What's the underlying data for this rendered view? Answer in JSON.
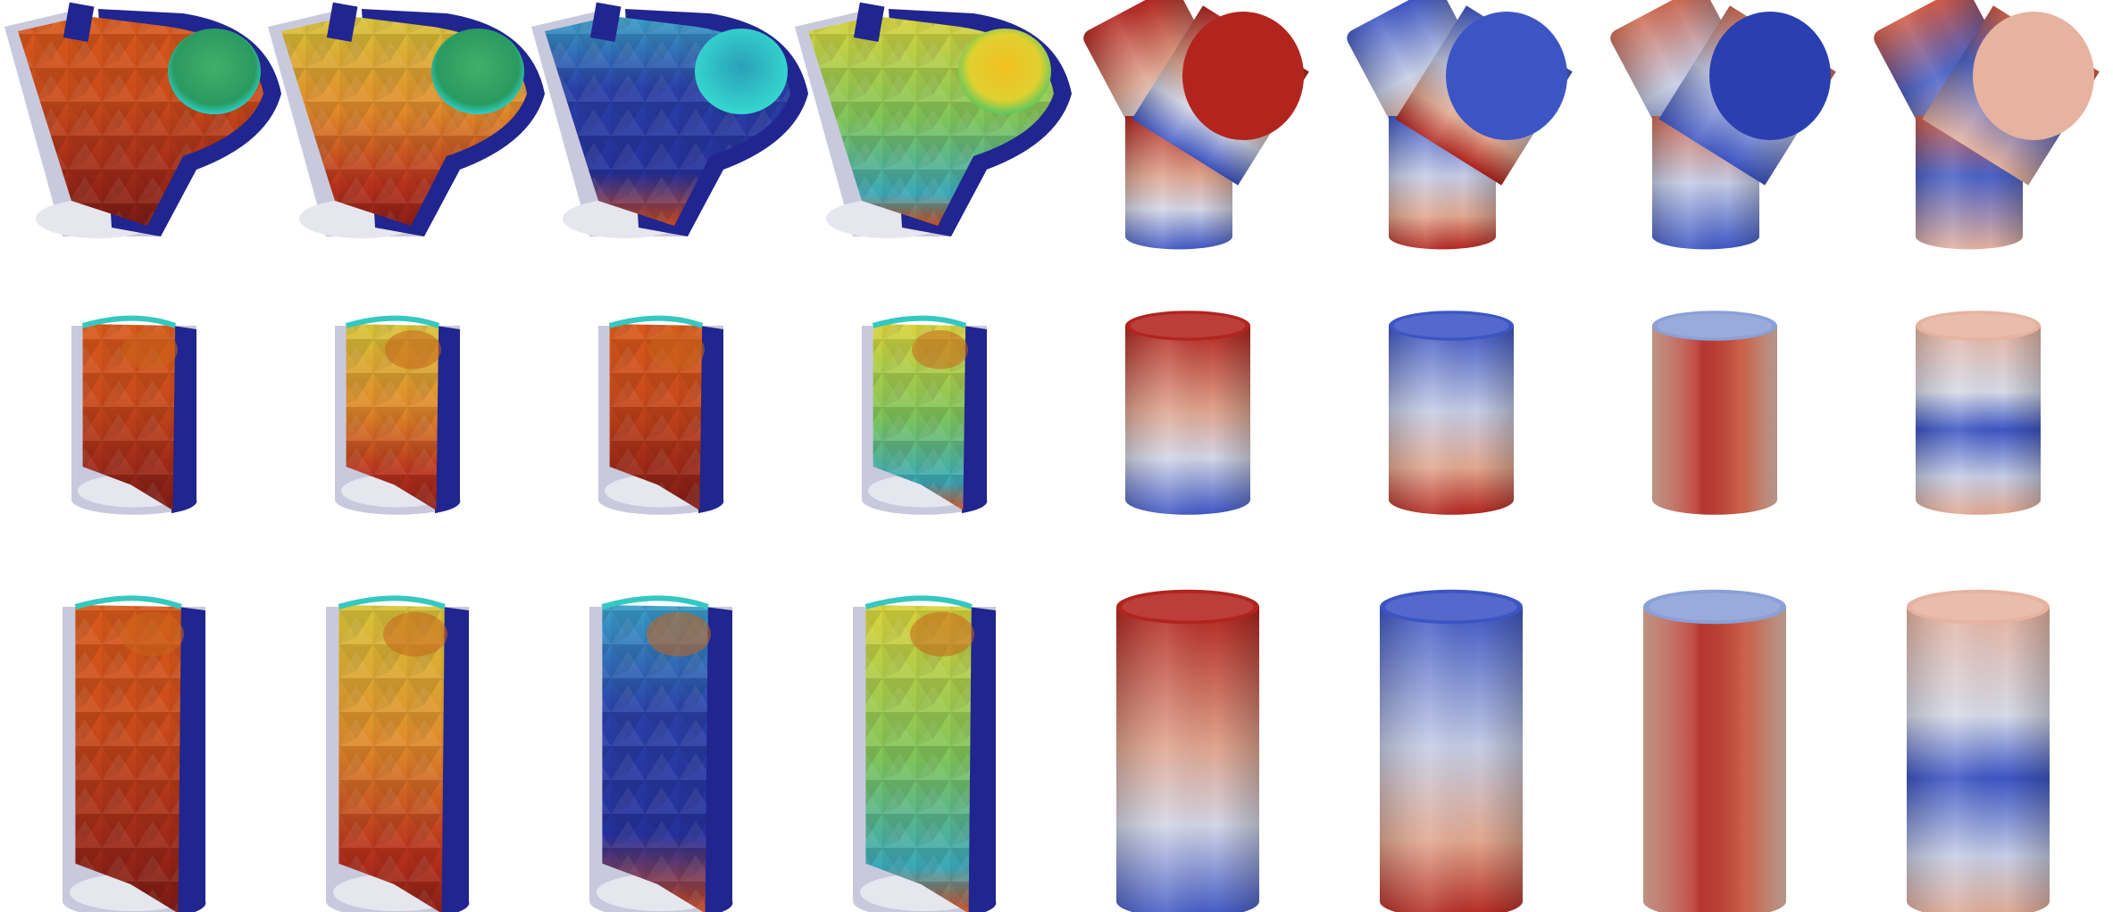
{
  "figure": {
    "rows": [
      {
        "shape": "y-junction",
        "panels": [
          {
            "kind": "cutaway",
            "scheme": "jet-warm"
          },
          {
            "kind": "cutaway",
            "scheme": "jet-mid"
          },
          {
            "kind": "cutaway",
            "scheme": "jet-cool"
          },
          {
            "kind": "cutaway",
            "scheme": "jet-yellow"
          },
          {
            "kind": "surface",
            "scheme": "red-top"
          },
          {
            "kind": "surface",
            "scheme": "blue-top"
          },
          {
            "kind": "surface",
            "scheme": "mixed-a"
          },
          {
            "kind": "surface",
            "scheme": "mixed-b"
          }
        ]
      },
      {
        "shape": "short-cylinder",
        "panels": [
          {
            "kind": "cutaway",
            "scheme": "jet-warm"
          },
          {
            "kind": "cutaway",
            "scheme": "jet-mid"
          },
          {
            "kind": "cutaway",
            "scheme": "jet-warm"
          },
          {
            "kind": "cutaway",
            "scheme": "jet-yellow"
          },
          {
            "kind": "surface",
            "scheme": "red-top"
          },
          {
            "kind": "surface",
            "scheme": "blue-top"
          },
          {
            "kind": "surface",
            "scheme": "red-body"
          },
          {
            "kind": "surface",
            "scheme": "blue-band"
          }
        ]
      },
      {
        "shape": "tall-cylinder",
        "panels": [
          {
            "kind": "cutaway",
            "scheme": "jet-warm"
          },
          {
            "kind": "cutaway",
            "scheme": "jet-mid"
          },
          {
            "kind": "cutaway",
            "scheme": "jet-cool"
          },
          {
            "kind": "cutaway",
            "scheme": "jet-yellow"
          },
          {
            "kind": "surface",
            "scheme": "red-top"
          },
          {
            "kind": "surface",
            "scheme": "blue-top"
          },
          {
            "kind": "surface",
            "scheme": "red-body"
          },
          {
            "kind": "surface",
            "scheme": "blue-band"
          }
        ]
      }
    ],
    "colors": {
      "navy": "#20258f",
      "ghost": "#c9c9dd",
      "ghost_light": "#e6e6ef",
      "red": "#b2241e",
      "orange": "#de6b3e",
      "peach": "#e6b3a0",
      "pale": "#d9dce6",
      "light_blue": "#8aa0d6",
      "blue": "#3d55c4",
      "dark_blue": "#2a3fb0"
    }
  }
}
